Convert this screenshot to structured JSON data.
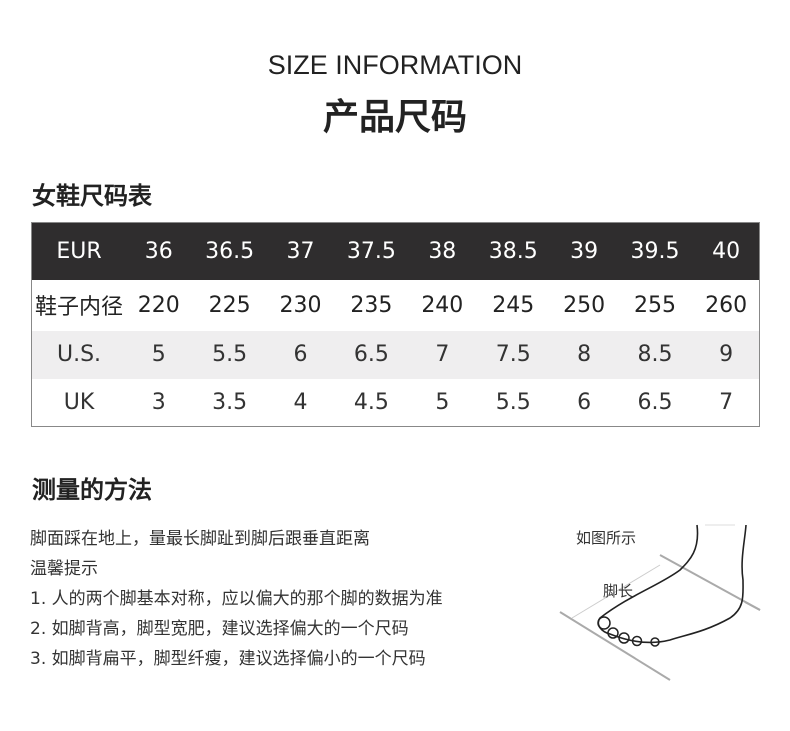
{
  "title_en": "SIZE INFORMATION",
  "title_cn": "产品尺码",
  "table_heading": "女鞋尺码表",
  "table": {
    "rows": [
      {
        "label": "EUR",
        "values": [
          "36",
          "36.5",
          "37",
          "37.5",
          "38",
          "38.5",
          "39",
          "39.5",
          "40"
        ]
      },
      {
        "label": "鞋子内径",
        "values": [
          "220",
          "225",
          "230",
          "235",
          "240",
          "245",
          "250",
          "255",
          "260"
        ]
      },
      {
        "label": "U.S.",
        "values": [
          "5",
          "5.5",
          "6",
          "6.5",
          "7",
          "7.5",
          "8",
          "8.5",
          "9"
        ]
      },
      {
        "label": "UK",
        "values": [
          "3",
          "3.5",
          "4",
          "4.5",
          "5",
          "5.5",
          "6",
          "6.5",
          "7"
        ]
      }
    ]
  },
  "measure_heading": "测量的方法",
  "lines": [
    "脚面踩在地上，量最长脚趾到脚后跟垂直距离",
    "温馨提示",
    "1. 人的两个脚基本对称，应以偏大的那个脚的数据为准",
    "2. 如脚背高，脚型宽肥，建议选择偏大的一个尺码",
    "3. 如脚背扁平，脚型纤瘦，建议选择偏小的一个尺码"
  ],
  "figure": {
    "caption": "如图所示",
    "length_label": "脚长",
    "icon": "foot-outline-illustration"
  }
}
